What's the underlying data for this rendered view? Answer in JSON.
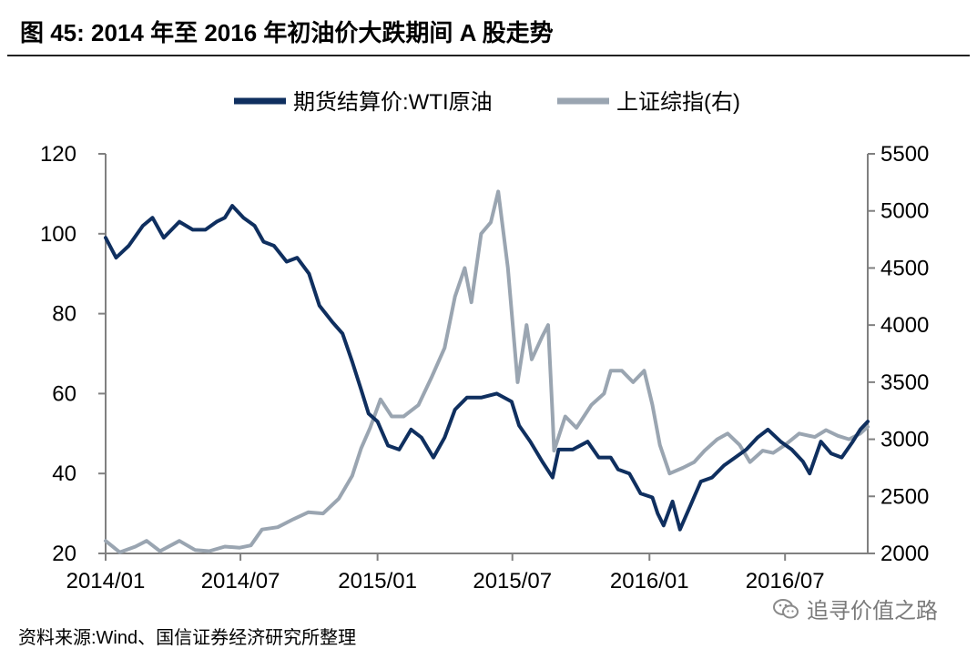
{
  "figure": {
    "title": "图 45:  2014 年至 2016 年初油价大跌期间 A 股走势",
    "source": "资料来源:Wind、国信证券经济研究所整理",
    "watermark": "追寻价值之路",
    "watermark_icon": "wechat-icon"
  },
  "chart_data": {
    "type": "line",
    "title": "图 45:  2014 年至 2016 年初油价大跌期间 A 股走势",
    "xlabel": "",
    "ylabel_left": "",
    "ylabel_right": "",
    "x_tick_labels": [
      "2014/01",
      "2014/07",
      "2015/01",
      "2015/07",
      "2016/01",
      "2016/07"
    ],
    "x_tick_dates": [
      "2014-01-01",
      "2014-07-01",
      "2015-01-01",
      "2015-07-01",
      "2016-01-01",
      "2016-07-01"
    ],
    "x_range": [
      "2014-01-01",
      "2016-10-20"
    ],
    "y_left": {
      "range": [
        20,
        120
      ],
      "ticks": [
        "20",
        "40",
        "60",
        "80",
        "100",
        "120"
      ]
    },
    "y_right": {
      "range": [
        2000,
        5500
      ],
      "ticks": [
        "2000",
        "2500",
        "3000",
        "3500",
        "4000",
        "4500",
        "5000",
        "5500"
      ]
    },
    "legend_position": "top-center",
    "grid": false,
    "series": [
      {
        "name": "期货结算价:WTI原油",
        "axis": "left",
        "color": "#0f2f5f",
        "points": [
          [
            "2014-01-01",
            99
          ],
          [
            "2014-01-15",
            94
          ],
          [
            "2014-02-01",
            97
          ],
          [
            "2014-02-20",
            102
          ],
          [
            "2014-03-05",
            104
          ],
          [
            "2014-03-20",
            99
          ],
          [
            "2014-04-10",
            103
          ],
          [
            "2014-04-28",
            101
          ],
          [
            "2014-05-15",
            101
          ],
          [
            "2014-05-30",
            103
          ],
          [
            "2014-06-10",
            104
          ],
          [
            "2014-06-20",
            107
          ],
          [
            "2014-07-05",
            104
          ],
          [
            "2014-07-20",
            102
          ],
          [
            "2014-08-01",
            98
          ],
          [
            "2014-08-15",
            97
          ],
          [
            "2014-09-01",
            93
          ],
          [
            "2014-09-15",
            94
          ],
          [
            "2014-10-01",
            90
          ],
          [
            "2014-10-15",
            82
          ],
          [
            "2014-11-01",
            78
          ],
          [
            "2014-11-15",
            75
          ],
          [
            "2014-11-28",
            68
          ],
          [
            "2014-12-10",
            61
          ],
          [
            "2014-12-20",
            55
          ],
          [
            "2015-01-01",
            53
          ],
          [
            "2015-01-15",
            47
          ],
          [
            "2015-01-30",
            46
          ],
          [
            "2015-02-15",
            51
          ],
          [
            "2015-03-01",
            49
          ],
          [
            "2015-03-17",
            44
          ],
          [
            "2015-04-01",
            49
          ],
          [
            "2015-04-15",
            56
          ],
          [
            "2015-05-01",
            59
          ],
          [
            "2015-05-20",
            59
          ],
          [
            "2015-06-10",
            60
          ],
          [
            "2015-06-30",
            58
          ],
          [
            "2015-07-10",
            52
          ],
          [
            "2015-07-25",
            48
          ],
          [
            "2015-08-10",
            43
          ],
          [
            "2015-08-24",
            39
          ],
          [
            "2015-09-01",
            46
          ],
          [
            "2015-09-20",
            46
          ],
          [
            "2015-10-10",
            48
          ],
          [
            "2015-10-25",
            44
          ],
          [
            "2015-11-10",
            44
          ],
          [
            "2015-11-20",
            41
          ],
          [
            "2015-12-05",
            40
          ],
          [
            "2015-12-20",
            35
          ],
          [
            "2016-01-05",
            34
          ],
          [
            "2016-01-12",
            30
          ],
          [
            "2016-01-20",
            27
          ],
          [
            "2016-02-01",
            33
          ],
          [
            "2016-02-11",
            26
          ],
          [
            "2016-02-25",
            32
          ],
          [
            "2016-03-10",
            38
          ],
          [
            "2016-03-25",
            39
          ],
          [
            "2016-04-10",
            42
          ],
          [
            "2016-04-25",
            44
          ],
          [
            "2016-05-10",
            46
          ],
          [
            "2016-05-25",
            49
          ],
          [
            "2016-06-08",
            51
          ],
          [
            "2016-06-25",
            48
          ],
          [
            "2016-07-10",
            46
          ],
          [
            "2016-07-25",
            43
          ],
          [
            "2016-08-03",
            40
          ],
          [
            "2016-08-18",
            48
          ],
          [
            "2016-09-01",
            45
          ],
          [
            "2016-09-15",
            44
          ],
          [
            "2016-09-30",
            48
          ],
          [
            "2016-10-10",
            51
          ],
          [
            "2016-10-20",
            53
          ]
        ]
      },
      {
        "name": "上证综指(右)",
        "axis": "right",
        "color": "#9aa5b1",
        "points": [
          [
            "2014-01-01",
            2110
          ],
          [
            "2014-01-20",
            2010
          ],
          [
            "2014-02-10",
            2060
          ],
          [
            "2014-02-25",
            2110
          ],
          [
            "2014-03-15",
            2020
          ],
          [
            "2014-04-10",
            2110
          ],
          [
            "2014-05-01",
            2030
          ],
          [
            "2014-05-20",
            2020
          ],
          [
            "2014-06-10",
            2060
          ],
          [
            "2014-06-30",
            2050
          ],
          [
            "2014-07-15",
            2070
          ],
          [
            "2014-07-30",
            2210
          ],
          [
            "2014-08-20",
            2230
          ],
          [
            "2014-09-10",
            2300
          ],
          [
            "2014-09-30",
            2360
          ],
          [
            "2014-10-20",
            2350
          ],
          [
            "2014-11-10",
            2480
          ],
          [
            "2014-11-28",
            2680
          ],
          [
            "2014-12-10",
            2920
          ],
          [
            "2014-12-22",
            3100
          ],
          [
            "2015-01-05",
            3350
          ],
          [
            "2015-01-20",
            3200
          ],
          [
            "2015-02-05",
            3200
          ],
          [
            "2015-02-25",
            3300
          ],
          [
            "2015-03-15",
            3550
          ],
          [
            "2015-04-01",
            3800
          ],
          [
            "2015-04-15",
            4250
          ],
          [
            "2015-04-28",
            4500
          ],
          [
            "2015-05-07",
            4200
          ],
          [
            "2015-05-20",
            4800
          ],
          [
            "2015-06-02",
            4900
          ],
          [
            "2015-06-12",
            5170
          ],
          [
            "2015-06-25",
            4500
          ],
          [
            "2015-07-08",
            3500
          ],
          [
            "2015-07-20",
            4000
          ],
          [
            "2015-07-27",
            3700
          ],
          [
            "2015-08-10",
            3900
          ],
          [
            "2015-08-18",
            4000
          ],
          [
            "2015-08-24",
            3200
          ],
          [
            "2015-08-26",
            2900
          ],
          [
            "2015-09-10",
            3200
          ],
          [
            "2015-09-25",
            3100
          ],
          [
            "2015-10-15",
            3300
          ],
          [
            "2015-11-01",
            3400
          ],
          [
            "2015-11-10",
            3600
          ],
          [
            "2015-11-25",
            3600
          ],
          [
            "2015-12-10",
            3500
          ],
          [
            "2015-12-25",
            3600
          ],
          [
            "2016-01-05",
            3300
          ],
          [
            "2016-01-15",
            2950
          ],
          [
            "2016-01-28",
            2700
          ],
          [
            "2016-02-15",
            2750
          ],
          [
            "2016-03-01",
            2800
          ],
          [
            "2016-03-15",
            2900
          ],
          [
            "2016-04-01",
            3000
          ],
          [
            "2016-04-15",
            3050
          ],
          [
            "2016-05-01",
            2950
          ],
          [
            "2016-05-15",
            2800
          ],
          [
            "2016-06-01",
            2900
          ],
          [
            "2016-06-15",
            2880
          ],
          [
            "2016-07-01",
            2950
          ],
          [
            "2016-07-20",
            3050
          ],
          [
            "2016-08-10",
            3020
          ],
          [
            "2016-08-25",
            3080
          ],
          [
            "2016-09-10",
            3030
          ],
          [
            "2016-09-25",
            3000
          ],
          [
            "2016-10-10",
            3050
          ],
          [
            "2016-10-20",
            3110
          ]
        ]
      }
    ]
  }
}
